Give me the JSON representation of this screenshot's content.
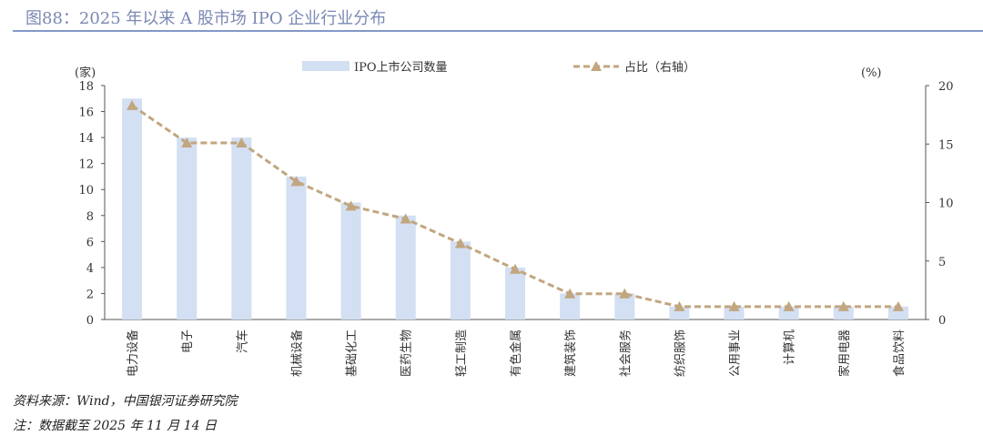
{
  "title": "图88：2025 年以来 A 股市场 IPO 企业行业分布",
  "source": "资料来源：Wind，中国银河证券研究院",
  "note": "注：数据截至 2025 年 11 月 14 日",
  "colors": {
    "bar": "#d3dff2",
    "line": "#c1a67f",
    "title": "#7b88b3"
  },
  "chart_data": {
    "type": "bar+line",
    "categories": [
      "电力设备",
      "电子",
      "汽车",
      "机械设备",
      "基础化工",
      "医药生物",
      "轻工制造",
      "有色金属",
      "建筑装饰",
      "社会服务",
      "纺织服饰",
      "公用事业",
      "计算机",
      "家用电器",
      "食品饮料"
    ],
    "series": [
      {
        "name": "IPO上市公司数量",
        "axis": "left",
        "type": "bar",
        "values": [
          17,
          14,
          14,
          11,
          9,
          8,
          6,
          4,
          2,
          2,
          1,
          1,
          1,
          1,
          1
        ]
      },
      {
        "name": "占比（右轴）",
        "axis": "right",
        "type": "line",
        "values": [
          18.3,
          15.1,
          15.1,
          11.8,
          9.7,
          8.6,
          6.5,
          4.3,
          2.2,
          2.2,
          1.1,
          1.1,
          1.1,
          1.1,
          1.1
        ]
      }
    ],
    "ylabel": "(家)",
    "y2label": "(%)",
    "ylim": [
      0,
      18
    ],
    "yticks": [
      0,
      2,
      4,
      6,
      8,
      10,
      12,
      14,
      16,
      18
    ],
    "y2lim": [
      0,
      20
    ],
    "y2ticks": [
      0,
      5,
      10,
      15,
      20
    ],
    "legend": "top-center",
    "grid": false
  }
}
